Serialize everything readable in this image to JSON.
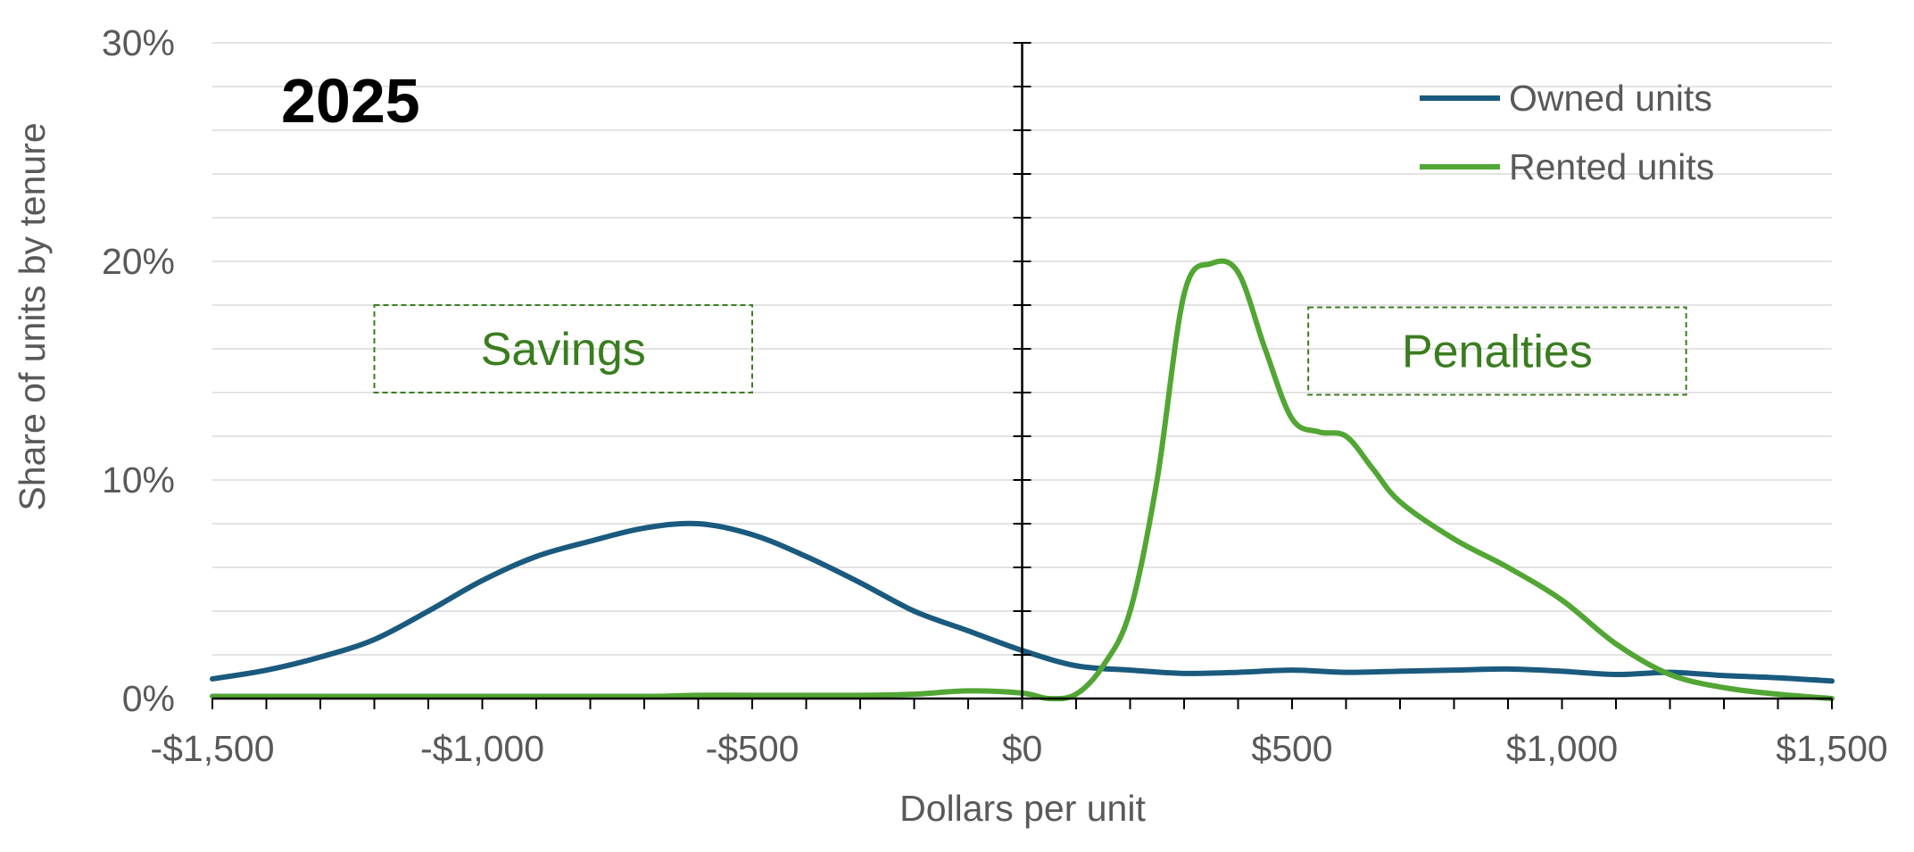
{
  "chart_data": {
    "type": "line",
    "title": "2025",
    "xlabel": "Dollars per unit",
    "ylabel": "Share of units by tenure",
    "xlim": [
      -1500,
      1500
    ],
    "ylim": [
      0,
      30
    ],
    "x_ticks": [
      -1500,
      -1000,
      -500,
      0,
      500,
      1000,
      1500
    ],
    "x_tick_labels": [
      "-$1,500",
      "-$1,000",
      "-$500",
      "$0",
      "$500",
      "$1,000",
      "$1,500"
    ],
    "y_ticks": [
      0,
      10,
      20,
      30
    ],
    "y_tick_labels": [
      "0%",
      "10%",
      "20%",
      "30%"
    ],
    "x_minor_step": 100,
    "y_minor_step": 2,
    "grid": "horizontal minor gridlines",
    "legend": "top-right",
    "annotations": [
      {
        "text": "Savings",
        "x_range": [
          -1200,
          -500
        ],
        "y_range": [
          14,
          18
        ]
      },
      {
        "text": "Penalties",
        "x_range": [
          530,
          1230
        ],
        "y_range": [
          13.9,
          17.9
        ]
      }
    ],
    "series": [
      {
        "name": "Owned units",
        "color": "#1a5a7e",
        "points": [
          [
            -1500,
            0.9
          ],
          [
            -1400,
            1.3
          ],
          [
            -1300,
            1.9
          ],
          [
            -1200,
            2.7
          ],
          [
            -1100,
            4.0
          ],
          [
            -1000,
            5.4
          ],
          [
            -900,
            6.5
          ],
          [
            -800,
            7.2
          ],
          [
            -700,
            7.8
          ],
          [
            -600,
            8.0
          ],
          [
            -500,
            7.5
          ],
          [
            -400,
            6.5
          ],
          [
            -300,
            5.3
          ],
          [
            -200,
            4.0
          ],
          [
            -100,
            3.1
          ],
          [
            0,
            2.2
          ],
          [
            100,
            1.5
          ],
          [
            200,
            1.3
          ],
          [
            300,
            1.15
          ],
          [
            400,
            1.2
          ],
          [
            500,
            1.3
          ],
          [
            600,
            1.2
          ],
          [
            700,
            1.25
          ],
          [
            800,
            1.3
          ],
          [
            900,
            1.35
          ],
          [
            1000,
            1.25
          ],
          [
            1100,
            1.1
          ],
          [
            1200,
            1.2
          ],
          [
            1300,
            1.05
          ],
          [
            1400,
            0.95
          ],
          [
            1500,
            0.8
          ]
        ]
      },
      {
        "name": "Rented units",
        "color": "#52a634",
        "points": [
          [
            -1500,
            0.1
          ],
          [
            -1000,
            0.1
          ],
          [
            -700,
            0.1
          ],
          [
            -600,
            0.15
          ],
          [
            -500,
            0.15
          ],
          [
            -300,
            0.15
          ],
          [
            -200,
            0.2
          ],
          [
            -100,
            0.35
          ],
          [
            0,
            0.25
          ],
          [
            50,
            0.0
          ],
          [
            100,
            0.2
          ],
          [
            150,
            1.5
          ],
          [
            200,
            4.0
          ],
          [
            250,
            10.0
          ],
          [
            300,
            18.5
          ],
          [
            350,
            19.9
          ],
          [
            400,
            19.5
          ],
          [
            450,
            16.0
          ],
          [
            500,
            12.8
          ],
          [
            550,
            12.2
          ],
          [
            600,
            12.0
          ],
          [
            650,
            10.5
          ],
          [
            700,
            9.0
          ],
          [
            800,
            7.3
          ],
          [
            900,
            6.0
          ],
          [
            1000,
            4.5
          ],
          [
            1100,
            2.5
          ],
          [
            1200,
            1.1
          ],
          [
            1300,
            0.5
          ],
          [
            1400,
            0.2
          ],
          [
            1500,
            0.0
          ]
        ]
      }
    ]
  }
}
